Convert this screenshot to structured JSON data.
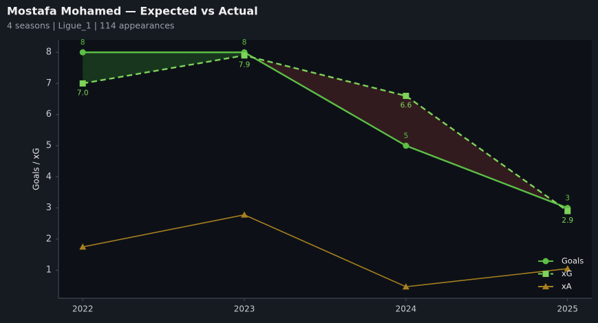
{
  "chart_data": {
    "type": "line",
    "title": "Mostafa Mohamed — Expected vs Actual",
    "subtitle": "4 seasons | Ligue_1 | 114 appearances",
    "y_label": "Goals / xG",
    "x": [
      2022,
      2023,
      2024,
      2025
    ],
    "xlim": [
      2021.85,
      2025.15
    ],
    "xticks": [
      2022,
      2023,
      2024,
      2025
    ],
    "ylim": [
      0.1,
      8.4
    ],
    "yticks": [
      1,
      2,
      3,
      4,
      5,
      6,
      7,
      8
    ],
    "legend": "lower right",
    "series": [
      {
        "name": "Goals",
        "color": "#5cbf46",
        "marker": "circle",
        "style": "solid",
        "values": [
          8,
          8,
          5,
          3
        ]
      },
      {
        "name": "xG",
        "color": "#7ed35a",
        "marker": "square",
        "style": "dashed",
        "values": [
          7.0,
          7.9,
          6.6,
          2.9
        ],
        "value_labels": [
          "7.0",
          "7.9",
          "6.6",
          "2.9"
        ]
      },
      {
        "name": "xA",
        "color": "#a8801f",
        "marker": "triangle",
        "style": "solid",
        "values": [
          1.75,
          2.78,
          0.47,
          1.05
        ]
      }
    ]
  }
}
